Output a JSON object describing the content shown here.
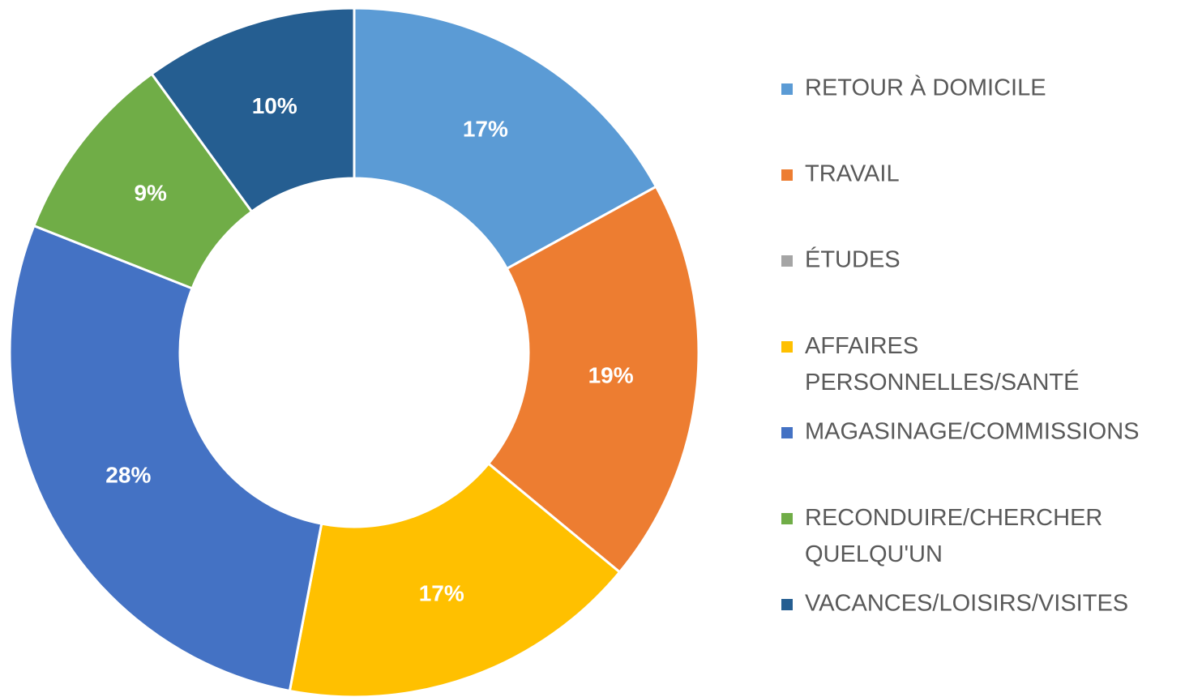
{
  "chart_data": {
    "type": "donut",
    "categories": [
      "RETOUR À DOMICILE",
      "TRAVAIL",
      "ÉTUDES",
      "AFFAIRES PERSONNELLES/SANTÉ",
      "MAGASINAGE/COMMISSIONS",
      "RECONDUIRE/CHERCHER QUELQU'UN",
      "VACANCES/LOISIRS/VISITES"
    ],
    "values": [
      17,
      19,
      0,
      17,
      28,
      9,
      10
    ],
    "value_labels": [
      "17%",
      "19%",
      null,
      "17%",
      "28%",
      "9%",
      "10%"
    ],
    "colors": [
      "#5b9bd5",
      "#ed7d31",
      "#a5a5a5",
      "#ffc000",
      "#4472c4",
      "#70ad47",
      "#255e91"
    ],
    "legend": "right"
  }
}
